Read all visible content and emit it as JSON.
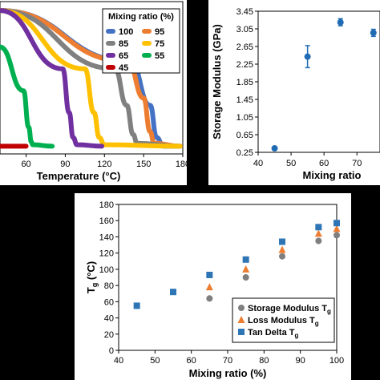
{
  "chart_data": [
    {
      "type": "line",
      "xlabel": "Temperature (°C)",
      "x_ticks": [
        "60",
        "90",
        "120",
        "150",
        "180"
      ],
      "xlim": [
        40,
        180
      ],
      "legend": {
        "title": "Mixing ratio (%)",
        "placement": "top-right",
        "entries": [
          {
            "name": "100",
            "color": "#4472C4"
          },
          {
            "name": "95",
            "color": "#ED7D31"
          },
          {
            "name": "85",
            "color": "#808080"
          },
          {
            "name": "75",
            "color": "#FFC000"
          },
          {
            "name": "65",
            "color": "#7030A0"
          },
          {
            "name": "55",
            "color": "#00B050"
          },
          {
            "name": "45",
            "color": "#C00000"
          }
        ]
      },
      "series": [
        {
          "name": "100",
          "color": "#4472C4",
          "x": [
            40,
            140,
            155,
            160,
            165,
            178
          ],
          "y": [
            0.95,
            0.6,
            0.3,
            0.08,
            0.02,
            0.02
          ]
        },
        {
          "name": "95",
          "color": "#ED7D31",
          "x": [
            40,
            138,
            150,
            155,
            158,
            178
          ],
          "y": [
            0.95,
            0.6,
            0.35,
            0.12,
            0.04,
            0.02
          ]
        },
        {
          "name": "85",
          "color": "#808080",
          "x": [
            40,
            128,
            137,
            142,
            145,
            178
          ],
          "y": [
            0.95,
            0.55,
            0.3,
            0.1,
            0.04,
            0.02
          ]
        },
        {
          "name": "75",
          "color": "#FFC000",
          "x": [
            40,
            105,
            112,
            116,
            120,
            178
          ],
          "y": [
            0.95,
            0.55,
            0.25,
            0.08,
            0.03,
            0.02
          ]
        },
        {
          "name": "65",
          "color": "#7030A0",
          "x": [
            40,
            88,
            93,
            96,
            99,
            118
          ],
          "y": [
            0.95,
            0.55,
            0.25,
            0.08,
            0.03,
            0.02
          ]
        },
        {
          "name": "55",
          "color": "#00B050",
          "x": [
            40,
            58,
            62,
            64,
            65,
            80
          ],
          "y": [
            0.7,
            0.4,
            0.15,
            0.05,
            0.03,
            0.02
          ]
        },
        {
          "name": "45",
          "color": "#C00000",
          "x": [
            40,
            60
          ],
          "y": [
            0.02,
            0.02
          ]
        }
      ]
    },
    {
      "type": "scatter",
      "xlabel": "Mixing ratio",
      "ylabel": "Storage Modulus (GPa)",
      "x_ticks": [
        "40",
        "50",
        "60",
        "70"
      ],
      "y_ticks": [
        "0.25",
        "0.65",
        "1.05",
        "1.45",
        "1.85",
        "2.25",
        "2.65",
        "3.05",
        "3.45"
      ],
      "xlim": [
        40,
        77
      ],
      "ylim": [
        0.25,
        3.45
      ],
      "color": "#1F6CB4",
      "x": [
        45,
        55,
        65,
        75
      ],
      "y": [
        0.34,
        2.42,
        3.2,
        2.96
      ],
      "err": [
        0.0,
        0.25,
        0.08,
        0.08
      ]
    },
    {
      "type": "scatter",
      "xlabel": "Mixing ratio (%)",
      "ylabel": "Tg (°C)",
      "ylabel_main": "T",
      "ylabel_sub": "g",
      "ylabel_unit": " (°C)",
      "x_ticks": [
        "40",
        "50",
        "60",
        "70",
        "80",
        "90",
        "100"
      ],
      "y_ticks": [
        "0",
        "20",
        "40",
        "60",
        "80",
        "100",
        "120",
        "140",
        "160",
        "180"
      ],
      "xlim": [
        40,
        100
      ],
      "ylim": [
        0,
        180
      ],
      "legend_placement": "bottom-right",
      "series": [
        {
          "name": "Storage Modulus Tg",
          "label_main": "Storage Modulus T",
          "label_sub": "g",
          "marker": "circle",
          "color": "#7F7F7F",
          "x": [
            65,
            75,
            85,
            95,
            100
          ],
          "y": [
            64,
            90,
            116,
            135,
            142
          ]
        },
        {
          "name": "Loss Modulus Tg",
          "label_main": "Loss Modulus T",
          "label_sub": "g",
          "marker": "triangle",
          "color": "#ED7D31",
          "x": [
            65,
            75,
            85,
            95,
            100
          ],
          "y": [
            78,
            100,
            124,
            144,
            150
          ]
        },
        {
          "name": "Tan Delta Tg",
          "label_main": "Tan Delta T",
          "label_sub": "g",
          "marker": "square",
          "color": "#2E75B6",
          "x": [
            45,
            55,
            65,
            75,
            85,
            95,
            100
          ],
          "y": [
            55,
            72,
            93,
            112,
            134,
            152,
            157
          ]
        }
      ]
    }
  ]
}
